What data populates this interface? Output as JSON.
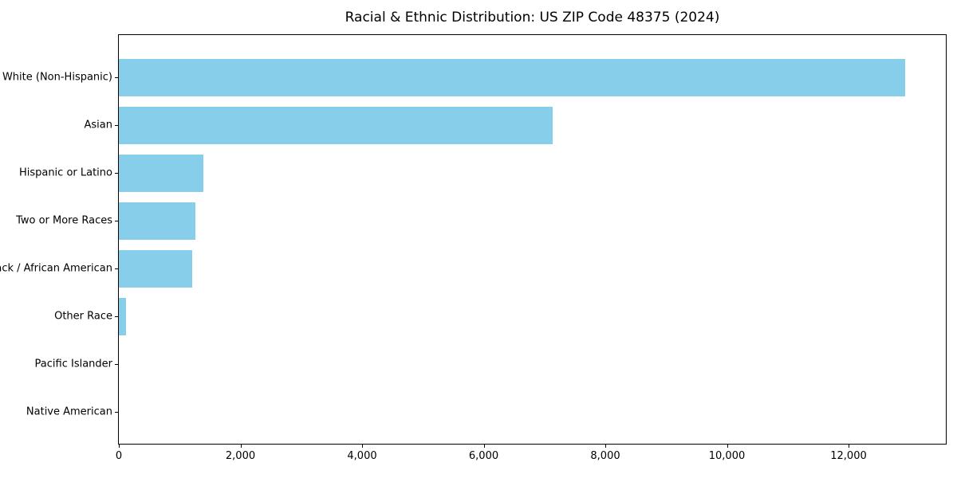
{
  "figure": {
    "background": "#ffffff",
    "text_color": "#000000",
    "spine_color": "#000000"
  },
  "chart_data": {
    "type": "bar",
    "orientation": "horizontal",
    "title": "Racial & Ethnic Distribution: US ZIP Code 48375 (2024)",
    "xlabel": "",
    "ylabel": "",
    "categories": [
      "White (Non-Hispanic)",
      "Asian",
      "Hispanic or Latino",
      "Two or More Races",
      "Black / African American",
      "Other Race",
      "Pacific Islander",
      "Native American"
    ],
    "values": [
      12930,
      7140,
      1390,
      1260,
      1210,
      120,
      0,
      0
    ],
    "xlim": [
      0,
      13600
    ],
    "xticks": [
      0,
      2000,
      4000,
      6000,
      8000,
      10000,
      12000
    ],
    "bar_color": "#87CEEB",
    "grid": false,
    "legend": null
  }
}
